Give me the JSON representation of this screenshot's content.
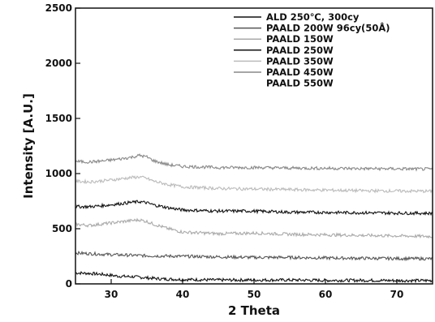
{
  "chart_data": {
    "type": "line",
    "title": "",
    "xlabel": "2 Theta",
    "ylabel": "Intensity [A.U.]",
    "xlim": [
      25,
      75
    ],
    "ylim": [
      0,
      2500
    ],
    "xticks": [
      30,
      40,
      50,
      60,
      70
    ],
    "yticks": [
      0,
      500,
      1000,
      1500,
      2000,
      2500
    ],
    "legend_position": "top-right",
    "series": [
      {
        "name": "ALD 250℃, 300cy",
        "color": "#111111",
        "x": [
          25,
          27,
          29,
          31,
          33,
          35,
          37,
          40,
          45,
          50,
          55,
          60,
          65,
          70,
          75
        ],
        "y": [
          100,
          95,
          85,
          70,
          65,
          55,
          45,
          40,
          35,
          35,
          35,
          32,
          32,
          30,
          30
        ]
      },
      {
        "name": "PAALD 200W 96cy(50Å)",
        "color": "#555555",
        "x": [
          25,
          30,
          35,
          40,
          45,
          50,
          55,
          60,
          65,
          70,
          75
        ],
        "y": [
          280,
          265,
          255,
          250,
          245,
          240,
          240,
          235,
          232,
          230,
          228
        ]
      },
      {
        "name": "PAALD 150W",
        "color": "#aaaaaa",
        "x": [
          25,
          27,
          29,
          31,
          33,
          34,
          35,
          36,
          38,
          40,
          45,
          50,
          55,
          60,
          65,
          70,
          75
        ],
        "y": [
          540,
          530,
          545,
          560,
          575,
          580,
          565,
          540,
          500,
          470,
          455,
          460,
          450,
          445,
          440,
          435,
          430
        ]
      },
      {
        "name": "PAALD 250W",
        "color": "#111111",
        "x": [
          25,
          27,
          29,
          31,
          33,
          34,
          35,
          36,
          38,
          40,
          45,
          50,
          55,
          60,
          65,
          70,
          75
        ],
        "y": [
          700,
          700,
          710,
          725,
          740,
          745,
          735,
          715,
          690,
          670,
          660,
          660,
          650,
          648,
          645,
          642,
          640
        ]
      },
      {
        "name": "PAALD 350W",
        "color": "#bbbbbb",
        "x": [
          25,
          27,
          29,
          31,
          33,
          34,
          35,
          36,
          38,
          40,
          45,
          50,
          55,
          60,
          65,
          70,
          75
        ],
        "y": [
          930,
          925,
          935,
          950,
          965,
          970,
          955,
          930,
          900,
          880,
          865,
          860,
          855,
          850,
          845,
          842,
          840
        ]
      },
      {
        "name": "PAALD 450W",
        "color": "#888888",
        "x": [
          25,
          27,
          29,
          31,
          33,
          34,
          35,
          36,
          38,
          40,
          45,
          50,
          55,
          60,
          65,
          70,
          75
        ],
        "y": [
          1110,
          1105,
          1115,
          1130,
          1150,
          1165,
          1150,
          1115,
          1080,
          1065,
          1055,
          1055,
          1050,
          1048,
          1045,
          1043,
          1040
        ]
      },
      {
        "name": "PAALD 550W",
        "color": "#999999",
        "x": [],
        "y": []
      }
    ]
  }
}
